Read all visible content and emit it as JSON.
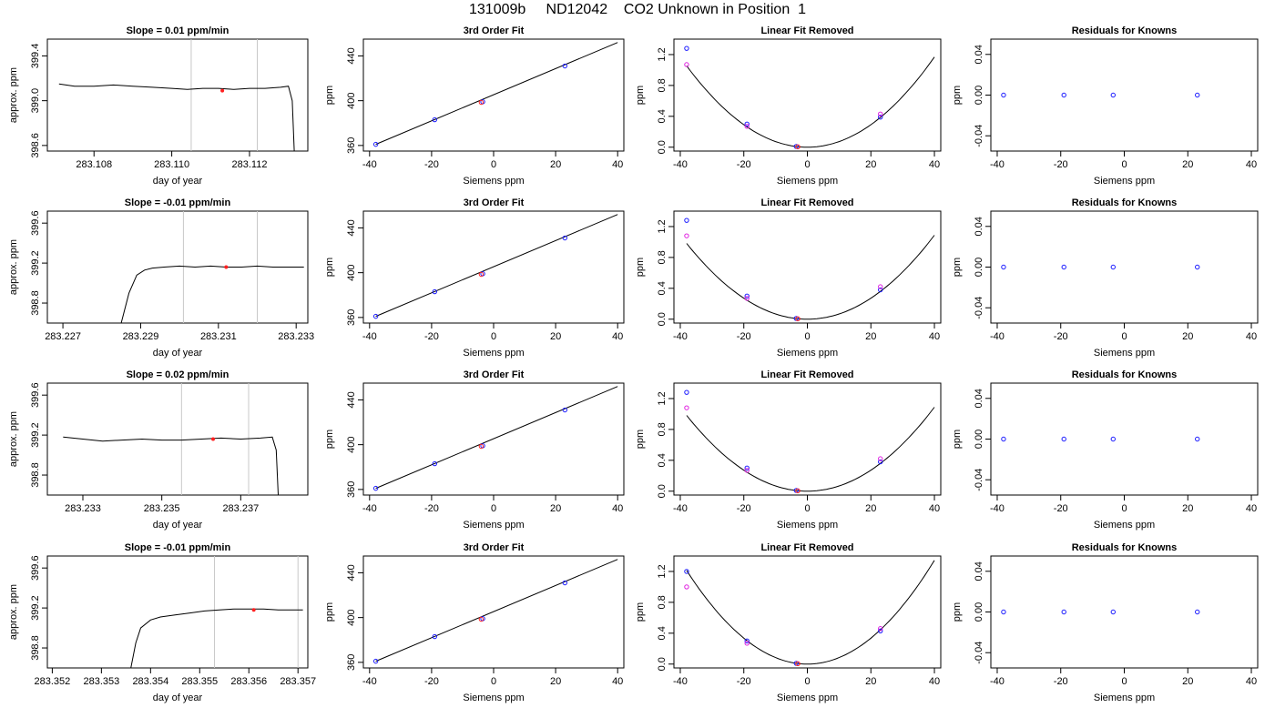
{
  "page": {
    "title": "131009b     ND12042    CO2 Unknown in Position  1"
  },
  "colors": {
    "known": "#1a1aff",
    "unknown": "#ff2020",
    "alt_known": "#e020e0",
    "line": "#000000",
    "marker": "#c8c8c8"
  },
  "chart_data": [
    {
      "type": "line",
      "title": "Slope =  0.01  ppm/min",
      "xlabel": "day of year",
      "ylabel": "approx. ppm",
      "xlim": [
        283.1068,
        283.1135
      ],
      "ylim": [
        398.55,
        399.55
      ],
      "xticks": [
        283.108,
        283.11,
        283.112
      ],
      "xtick_labels": [
        "283.108",
        "283.110",
        "283.112"
      ],
      "yticks": [
        398.6,
        399.0,
        399.4
      ],
      "ytick_labels": [
        "398.6",
        "399.0",
        "399.4"
      ],
      "series": [
        {
          "x": [
            283.1071,
            283.1075,
            283.108,
            283.1085,
            283.109,
            283.1095,
            283.11,
            283.1104,
            283.1108,
            283.1112,
            283.1116,
            283.112,
            283.1124,
            283.1128,
            283.113,
            283.1131,
            283.11315
          ],
          "y": [
            399.15,
            399.13,
            399.13,
            399.14,
            399.13,
            399.12,
            399.11,
            399.1,
            399.11,
            399.11,
            399.1,
            399.11,
            399.11,
            399.12,
            399.13,
            399.0,
            398.55
          ]
        }
      ],
      "markers": [
        283.1105,
        283.1122
      ],
      "highlight": {
        "x": 283.1113,
        "y": 399.09
      }
    },
    {
      "type": "line",
      "title": "Slope =  -0.01  ppm/min",
      "xlabel": "day of year",
      "ylabel": "approx. ppm",
      "xlim": [
        283.2266,
        283.2333
      ],
      "ylim": [
        398.6,
        399.72
      ],
      "xticks": [
        283.227,
        283.229,
        283.231,
        283.233
      ],
      "xtick_labels": [
        "283.227",
        "283.229",
        "283.231",
        "283.233"
      ],
      "yticks": [
        398.8,
        399.2,
        399.6
      ],
      "ytick_labels": [
        "398.8",
        "399.2",
        "399.6"
      ],
      "series": [
        {
          "x": [
            283.2285,
            283.2287,
            283.2289,
            283.2291,
            283.2293,
            283.2296,
            283.23,
            283.2304,
            283.2308,
            283.2312,
            283.2316,
            283.232,
            283.2324,
            283.2328,
            283.2332
          ],
          "y": [
            398.6,
            398.9,
            399.08,
            399.13,
            399.15,
            399.16,
            399.17,
            399.16,
            399.17,
            399.16,
            399.16,
            399.17,
            399.16,
            399.16,
            399.16
          ]
        }
      ],
      "markers": [
        283.2301,
        283.232
      ],
      "highlight": {
        "x": 283.2312,
        "y": 399.16
      }
    },
    {
      "type": "line",
      "title": "Slope =  0.02  ppm/min",
      "xlabel": "day of year",
      "ylabel": "approx. ppm",
      "xlim": [
        283.2321,
        283.2387
      ],
      "ylim": [
        398.6,
        399.72
      ],
      "xticks": [
        283.233,
        283.235,
        283.237
      ],
      "xtick_labels": [
        "283.233",
        "283.235",
        "283.237"
      ],
      "yticks": [
        398.8,
        399.2,
        399.6
      ],
      "ytick_labels": [
        "398.8",
        "399.2",
        "399.6"
      ],
      "series": [
        {
          "x": [
            283.2325,
            283.233,
            283.2335,
            283.234,
            283.2345,
            283.235,
            283.2355,
            283.236,
            283.2365,
            283.237,
            283.2375,
            283.2378,
            283.2379,
            283.23795
          ],
          "y": [
            399.18,
            399.16,
            399.14,
            399.15,
            399.16,
            399.15,
            399.15,
            399.16,
            399.17,
            399.16,
            399.17,
            399.18,
            399.05,
            398.6
          ]
        }
      ],
      "markers": [
        283.2355,
        283.2372
      ],
      "highlight": {
        "x": 283.2363,
        "y": 399.16
      }
    },
    {
      "type": "line",
      "title": "Slope =  -0.01  ppm/min",
      "xlabel": "day of year",
      "ylabel": "approx. ppm",
      "xlim": [
        283.3519,
        283.3572
      ],
      "ylim": [
        398.6,
        399.72
      ],
      "xticks": [
        283.352,
        283.353,
        283.354,
        283.355,
        283.356,
        283.357
      ],
      "xtick_labels": [
        "283.352",
        "283.353",
        "283.354",
        "283.355",
        "283.356",
        "283.357"
      ],
      "yticks": [
        398.8,
        399.2,
        399.6
      ],
      "ytick_labels": [
        "398.8",
        "399.2",
        "399.6"
      ],
      "series": [
        {
          "x": [
            283.3536,
            283.3537,
            283.3538,
            283.354,
            283.3542,
            283.3545,
            283.3548,
            283.3551,
            283.3554,
            283.3557,
            283.356,
            283.3563,
            283.3566,
            283.3569,
            283.3571
          ],
          "y": [
            398.6,
            398.85,
            399.0,
            399.08,
            399.11,
            399.13,
            399.15,
            399.17,
            399.18,
            399.19,
            399.19,
            399.19,
            399.18,
            399.18,
            399.18
          ]
        }
      ],
      "markers": [
        283.3553,
        283.357
      ],
      "highlight": {
        "x": 283.3561,
        "y": 399.18
      }
    },
    {
      "type": "scatter",
      "title": "3rd Order Fit",
      "xlabel": "Siemens ppm",
      "ylabel": "ppm",
      "xlim": [
        -42,
        42
      ],
      "ylim": [
        355,
        455
      ],
      "xticks": [
        -40,
        -20,
        0,
        20,
        40
      ],
      "yticks": [
        360,
        400,
        440
      ],
      "line": [
        [
          -38,
          361
        ],
        [
          40,
          452
        ]
      ],
      "series": [
        {
          "name": "knowns",
          "x": [
            -38,
            -19,
            -3.5,
            23
          ],
          "y": [
            361,
            383,
            399,
            431
          ]
        },
        {
          "name": "unknown",
          "x": [
            -4
          ],
          "y": [
            398.5
          ]
        }
      ]
    },
    {
      "type": "scatter",
      "title": "3rd Order Fit",
      "xlabel": "Siemens ppm",
      "ylabel": "ppm",
      "xlim": [
        -42,
        42
      ],
      "ylim": [
        355,
        455
      ],
      "xticks": [
        -40,
        -20,
        0,
        20,
        40
      ],
      "yticks": [
        360,
        400,
        440
      ],
      "line": [
        [
          -38,
          361
        ],
        [
          40,
          452
        ]
      ],
      "series": [
        {
          "name": "knowns",
          "x": [
            -38,
            -19,
            -3.5,
            23
          ],
          "y": [
            361,
            383,
            399,
            431
          ]
        },
        {
          "name": "unknown",
          "x": [
            -4
          ],
          "y": [
            398.5
          ]
        }
      ]
    },
    {
      "type": "scatter",
      "title": "3rd Order Fit",
      "xlabel": "Siemens ppm",
      "ylabel": "ppm",
      "xlim": [
        -42,
        42
      ],
      "ylim": [
        355,
        455
      ],
      "xticks": [
        -40,
        -20,
        0,
        20,
        40
      ],
      "yticks": [
        360,
        400,
        440
      ],
      "line": [
        [
          -38,
          361
        ],
        [
          40,
          452
        ]
      ],
      "series": [
        {
          "name": "knowns",
          "x": [
            -38,
            -19,
            -3.5,
            23
          ],
          "y": [
            361,
            383,
            399,
            431
          ]
        },
        {
          "name": "unknown",
          "x": [
            -4
          ],
          "y": [
            398.5
          ]
        }
      ]
    },
    {
      "type": "scatter",
      "title": "3rd Order Fit",
      "xlabel": "Siemens ppm",
      "ylabel": "ppm",
      "xlim": [
        -42,
        42
      ],
      "ylim": [
        355,
        455
      ],
      "xticks": [
        -40,
        -20,
        0,
        20,
        40
      ],
      "yticks": [
        360,
        400,
        440
      ],
      "line": [
        [
          -38,
          361
        ],
        [
          40,
          452
        ]
      ],
      "series": [
        {
          "name": "knowns",
          "x": [
            -38,
            -19,
            -3.5,
            23
          ],
          "y": [
            361,
            383,
            399,
            431
          ]
        },
        {
          "name": "unknown",
          "x": [
            -4
          ],
          "y": [
            398.5
          ]
        }
      ]
    },
    {
      "type": "scatter",
      "title": "Linear Fit Removed",
      "xlabel": "Siemens ppm",
      "ylabel": "ppm",
      "xlim": [
        -42,
        42
      ],
      "ylim": [
        -0.05,
        1.4
      ],
      "xticks": [
        -40,
        -20,
        0,
        20,
        40
      ],
      "yticks": [
        0.0,
        0.4,
        0.8,
        1.2
      ],
      "ytick_labels": [
        "0.0",
        "0.4",
        "0.8",
        "1.2"
      ],
      "curve": {
        "a": 0.00073,
        "xmin": -38,
        "xmax": 40
      },
      "series": [
        {
          "name": "knowns",
          "x": [
            -38,
            -19,
            -3.5,
            23
          ],
          "y": [
            1.28,
            0.3,
            0.01,
            0.39
          ]
        },
        {
          "name": "unknown",
          "x": [
            -3
          ],
          "y": [
            0.005
          ]
        },
        {
          "name": "alt",
          "x": [
            -38,
            -19,
            23
          ],
          "y": [
            1.07,
            0.27,
            0.43
          ]
        }
      ]
    },
    {
      "type": "scatter",
      "title": "Linear Fit Removed",
      "xlabel": "Siemens ppm",
      "ylabel": "ppm",
      "xlim": [
        -42,
        42
      ],
      "ylim": [
        -0.05,
        1.4
      ],
      "xticks": [
        -40,
        -20,
        0,
        20,
        40
      ],
      "yticks": [
        0.0,
        0.4,
        0.8,
        1.2
      ],
      "ytick_labels": [
        "0.0",
        "0.4",
        "0.8",
        "1.2"
      ],
      "curve": {
        "a": 0.00068,
        "xmin": -38,
        "xmax": 40
      },
      "series": [
        {
          "name": "knowns",
          "x": [
            -38,
            -19,
            -3.5,
            23
          ],
          "y": [
            1.28,
            0.3,
            0.01,
            0.38
          ]
        },
        {
          "name": "unknown",
          "x": [
            -3
          ],
          "y": [
            0.005
          ]
        },
        {
          "name": "alt",
          "x": [
            -38,
            -19,
            23
          ],
          "y": [
            1.08,
            0.27,
            0.42
          ]
        }
      ]
    },
    {
      "type": "scatter",
      "title": "Linear Fit Removed",
      "xlabel": "Siemens ppm",
      "ylabel": "ppm",
      "xlim": [
        -42,
        42
      ],
      "ylim": [
        -0.05,
        1.4
      ],
      "xticks": [
        -40,
        -20,
        0,
        20,
        40
      ],
      "yticks": [
        0.0,
        0.4,
        0.8,
        1.2
      ],
      "ytick_labels": [
        "0.0",
        "0.4",
        "0.8",
        "1.2"
      ],
      "curve": {
        "a": 0.00068,
        "xmin": -38,
        "xmax": 40
      },
      "series": [
        {
          "name": "knowns",
          "x": [
            -38,
            -19,
            -3.5,
            23
          ],
          "y": [
            1.28,
            0.3,
            0.01,
            0.38
          ]
        },
        {
          "name": "unknown",
          "x": [
            -3
          ],
          "y": [
            0.005
          ]
        },
        {
          "name": "alt",
          "x": [
            -38,
            -19,
            23
          ],
          "y": [
            1.08,
            0.27,
            0.42
          ]
        }
      ]
    },
    {
      "type": "scatter",
      "title": "Linear Fit Removed",
      "xlabel": "Siemens ppm",
      "ylabel": "ppm",
      "xlim": [
        -42,
        42
      ],
      "ylim": [
        -0.05,
        1.4
      ],
      "xticks": [
        -40,
        -20,
        0,
        20,
        40
      ],
      "yticks": [
        0.0,
        0.4,
        0.8,
        1.2
      ],
      "ytick_labels": [
        "0.0",
        "0.4",
        "0.8",
        "1.2"
      ],
      "curve": {
        "a": 0.00084,
        "xmin": -38,
        "xmax": 40
      },
      "series": [
        {
          "name": "knowns",
          "x": [
            -38,
            -19,
            -3.5,
            23
          ],
          "y": [
            1.2,
            0.3,
            0.01,
            0.43
          ]
        },
        {
          "name": "unknown",
          "x": [
            -3
          ],
          "y": [
            0.005
          ]
        },
        {
          "name": "alt",
          "x": [
            -38,
            -19,
            23
          ],
          "y": [
            1.0,
            0.27,
            0.46
          ]
        }
      ]
    },
    {
      "type": "scatter",
      "title": "Residuals for Knowns",
      "xlabel": "Siemens ppm",
      "ylabel": "ppm",
      "xlim": [
        -42,
        42
      ],
      "ylim": [
        -0.055,
        0.055
      ],
      "xticks": [
        -40,
        -20,
        0,
        20,
        40
      ],
      "yticks": [
        -0.04,
        0.0,
        0.04
      ],
      "ytick_labels": [
        "-0.04",
        "0.00",
        "0.04"
      ],
      "series": [
        {
          "name": "knowns",
          "x": [
            -38,
            -19,
            -3.5,
            23
          ],
          "y": [
            0,
            0,
            0,
            0
          ]
        }
      ]
    },
    {
      "type": "scatter",
      "title": "Residuals for Knowns",
      "xlabel": "Siemens ppm",
      "ylabel": "ppm",
      "xlim": [
        -42,
        42
      ],
      "ylim": [
        -0.055,
        0.055
      ],
      "xticks": [
        -40,
        -20,
        0,
        20,
        40
      ],
      "yticks": [
        -0.04,
        0.0,
        0.04
      ],
      "ytick_labels": [
        "-0.04",
        "0.00",
        "0.04"
      ],
      "series": [
        {
          "name": "knowns",
          "x": [
            -38,
            -19,
            -3.5,
            23
          ],
          "y": [
            0,
            0,
            0,
            0
          ]
        }
      ]
    },
    {
      "type": "scatter",
      "title": "Residuals for Knowns",
      "xlabel": "Siemens ppm",
      "ylabel": "ppm",
      "xlim": [
        -42,
        42
      ],
      "ylim": [
        -0.055,
        0.055
      ],
      "xticks": [
        -40,
        -20,
        0,
        20,
        40
      ],
      "yticks": [
        -0.04,
        0.0,
        0.04
      ],
      "ytick_labels": [
        "-0.04",
        "0.00",
        "0.04"
      ],
      "series": [
        {
          "name": "knowns",
          "x": [
            -38,
            -19,
            -3.5,
            23
          ],
          "y": [
            0,
            0,
            0,
            0
          ]
        }
      ]
    },
    {
      "type": "scatter",
      "title": "Residuals for Knowns",
      "xlabel": "Siemens ppm",
      "ylabel": "ppm",
      "xlim": [
        -42,
        42
      ],
      "ylim": [
        -0.055,
        0.055
      ],
      "xticks": [
        -40,
        -20,
        0,
        20,
        40
      ],
      "yticks": [
        -0.04,
        0.0,
        0.04
      ],
      "ytick_labels": [
        "-0.04",
        "0.00",
        "0.04"
      ],
      "series": [
        {
          "name": "knowns",
          "x": [
            -38,
            -19,
            -3.5,
            23
          ],
          "y": [
            0,
            0,
            0,
            0
          ]
        }
      ]
    }
  ]
}
